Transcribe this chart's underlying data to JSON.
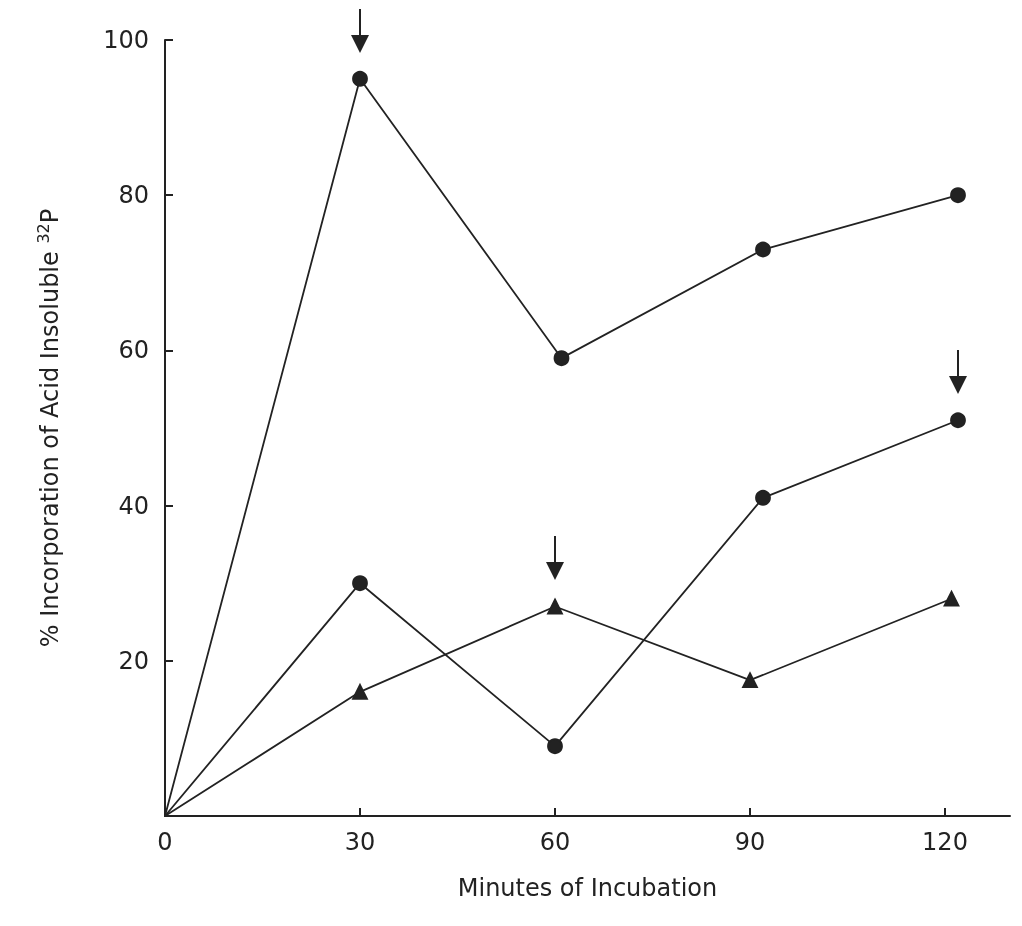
{
  "chart_data": {
    "type": "line",
    "xlabel": "Minutes of Incubation",
    "ylabel": "% Incorporation of Acid Insoluble $^{32}$P",
    "xlim": [
      0,
      130
    ],
    "xticks": [
      0,
      30,
      60,
      90,
      120
    ],
    "ylim": [
      0,
      100
    ],
    "yticks": [
      20,
      40,
      60,
      80,
      100
    ],
    "grid": false,
    "line_style": "solid",
    "series": [
      {
        "color": "#222222",
        "marker": "circle",
        "x": [
          0,
          30,
          61,
          92,
          122
        ],
        "values": [
          0,
          95,
          59,
          73,
          80
        ]
      },
      {
        "color": "#222222",
        "marker": "circle",
        "x": [
          0,
          30,
          60,
          92,
          122
        ],
        "values": [
          0,
          30,
          9,
          41,
          51
        ]
      },
      {
        "color": "#222222",
        "marker": "triangle",
        "x": [
          0,
          30,
          60,
          90,
          121
        ],
        "values": [
          0,
          16,
          27,
          17.5,
          28
        ]
      }
    ]
  }
}
